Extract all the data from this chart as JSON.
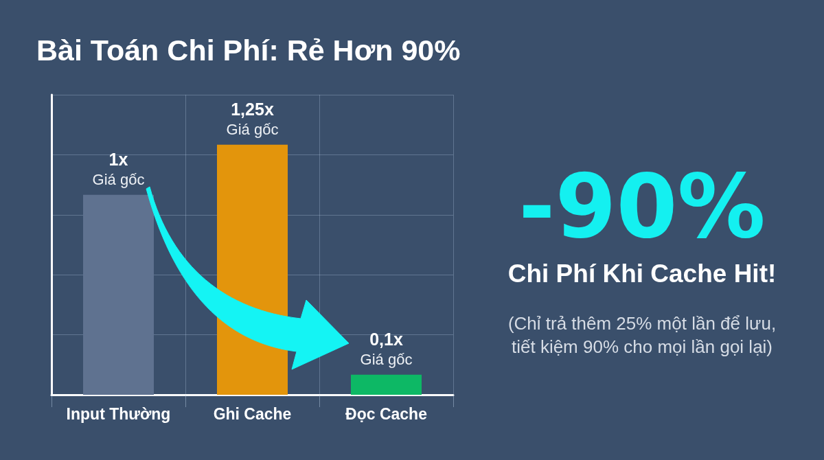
{
  "chart_data": {
    "type": "bar",
    "title": "Bài Toán Chi Phí: Rẻ Hơn 90%",
    "categories": [
      "Input Thường",
      "Ghi Cache",
      "Đọc Cache"
    ],
    "values": [
      1,
      1.25,
      0.1
    ],
    "colors": [
      "#5f7290",
      "#e3950c",
      "#0db865"
    ],
    "value_labels": [
      "1x\nGiá gốc",
      "1,25x\nGiá gốc",
      "0,1x\nGiá gốc"
    ],
    "annotations": [
      "-90%",
      "Chi Phí Khi Cache Hit!",
      "(Chỉ trả thêm 25% một lần để lưu,\ntiết kiệm 90% cho mọi lần gọi lại)"
    ],
    "grid": true,
    "tick_labels": "x"
  }
}
